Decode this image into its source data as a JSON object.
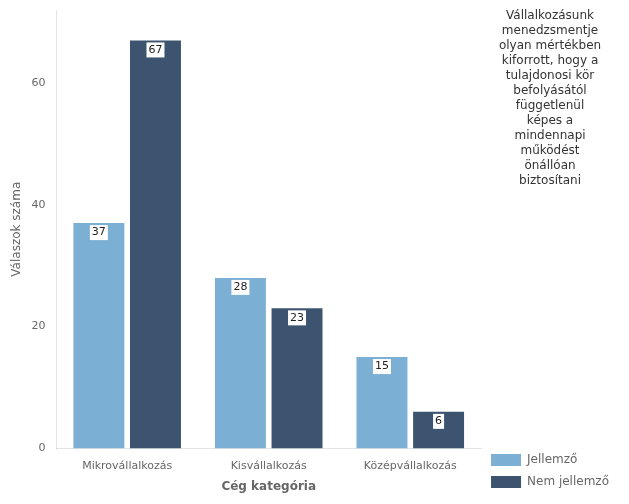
{
  "chart_data": {
    "type": "bar",
    "categories": [
      "Mikrovállalkozás",
      "Kisvállalkozás",
      "Középvállalkozás"
    ],
    "series": [
      {
        "name": "Jellemző",
        "color": "#7bafd4",
        "values": [
          37,
          28,
          15
        ]
      },
      {
        "name": "Nem jellemző",
        "color": "#3d5470",
        "values": [
          67,
          23,
          6
        ]
      }
    ],
    "xlabel": "Cég kategória",
    "ylabel": "Válaszok száma",
    "legend_title": "Vállalkozásunk\nmenedzsmentje\nolyan mértékben\nkiforrott, hogy a\ntulajdonosi kör\nbefolyásától\nfüggetlenül\nképes a\nmindennapi\nműködést\nönállóan\nbiztosítani",
    "ylim": [
      0,
      72
    ],
    "yticks": [
      0,
      20,
      40,
      60
    ],
    "grid": false,
    "legend": "right",
    "data_labels": true
  }
}
